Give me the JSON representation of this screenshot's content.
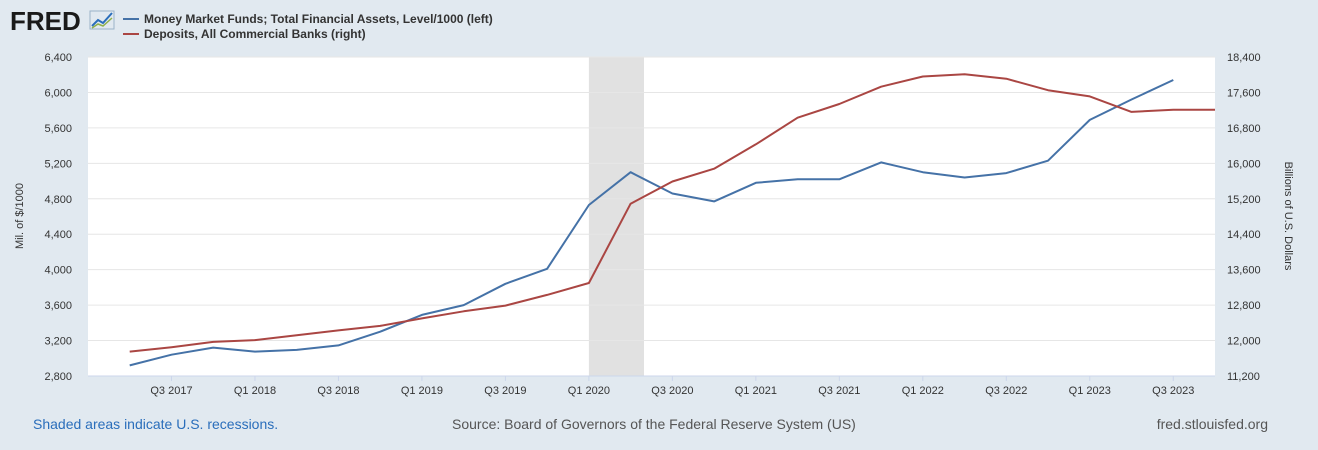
{
  "brand": {
    "logo_text": "FRED"
  },
  "footer": {
    "recession_note": "Shaded areas indicate U.S. recessions.",
    "source": "Source: Board of Governors of the Federal Reserve System (US)",
    "site": "fred.stlouisfed.org"
  },
  "colors": {
    "background": "#e1e9f0",
    "plot_background": "#ffffff",
    "series_left": "#4572a7",
    "series_right": "#aa4643",
    "recession": "#e1e1e1",
    "grid": "#e5e5e5",
    "link": "#2a6ebb"
  },
  "chart_data": {
    "type": "line",
    "x_tick_labels": [
      "Q3 2017",
      "Q1 2018",
      "Q3 2018",
      "Q1 2019",
      "Q3 2019",
      "Q1 2020",
      "Q3 2020",
      "Q1 2021",
      "Q3 2021",
      "Q1 2022",
      "Q3 2022",
      "Q1 2023",
      "Q3 2023"
    ],
    "recession": {
      "start": 2020.0,
      "end": 2020.33
    },
    "left_axis": {
      "label": "Mil. of $/1000",
      "ylim": [
        2800,
        6400
      ],
      "ticks": [
        "2,800",
        "3,200",
        "3,600",
        "4,000",
        "4,400",
        "4,800",
        "5,200",
        "5,600",
        "6,000",
        "6,400"
      ]
    },
    "right_axis": {
      "label": "Billions of U.S. Dollars",
      "ylim": [
        11200,
        18400
      ],
      "ticks": [
        "11,200",
        "12,000",
        "12,800",
        "13,600",
        "14,400",
        "15,200",
        "16,000",
        "16,800",
        "17,600",
        "18,400"
      ]
    },
    "series": [
      {
        "name": "Money Market Funds; Total Financial Assets, Level/1000 (left)",
        "axis": "left",
        "x": [
          2017.25,
          2017.5,
          2017.75,
          2018.0,
          2018.25,
          2018.5,
          2018.75,
          2019.0,
          2019.25,
          2019.5,
          2019.75,
          2020.0,
          2020.25,
          2020.5,
          2020.75,
          2021.0,
          2021.25,
          2021.5,
          2021.75,
          2022.0,
          2022.25,
          2022.5,
          2022.75,
          2023.0,
          2023.25,
          2023.5
        ],
        "values": [
          2920,
          3040,
          3120,
          3075,
          3095,
          3145,
          3300,
          3490,
          3600,
          3840,
          4010,
          4730,
          5100,
          4860,
          4770,
          4980,
          5020,
          5020,
          5210,
          5100,
          5040,
          5090,
          5230,
          5690,
          5920,
          6140
        ]
      },
      {
        "name": "Deposits, All Commercial Banks (right)",
        "axis": "right",
        "x": [
          2017.25,
          2017.5,
          2017.75,
          2018.0,
          2018.25,
          2018.5,
          2018.75,
          2019.0,
          2019.25,
          2019.5,
          2019.75,
          2020.0,
          2020.25,
          2020.5,
          2020.75,
          2021.0,
          2021.25,
          2021.5,
          2021.75,
          2022.0,
          2022.25,
          2022.5,
          2022.75,
          2023.0,
          2023.25,
          2023.5,
          2023.75
        ],
        "values": [
          11750,
          11850,
          11970,
          12010,
          12120,
          12230,
          12330,
          12500,
          12660,
          12790,
          13030,
          13300,
          15090,
          15590,
          15880,
          16430,
          17030,
          17340,
          17730,
          17960,
          18010,
          17910,
          17650,
          17510,
          17160,
          17210,
          17210
        ]
      }
    ]
  }
}
